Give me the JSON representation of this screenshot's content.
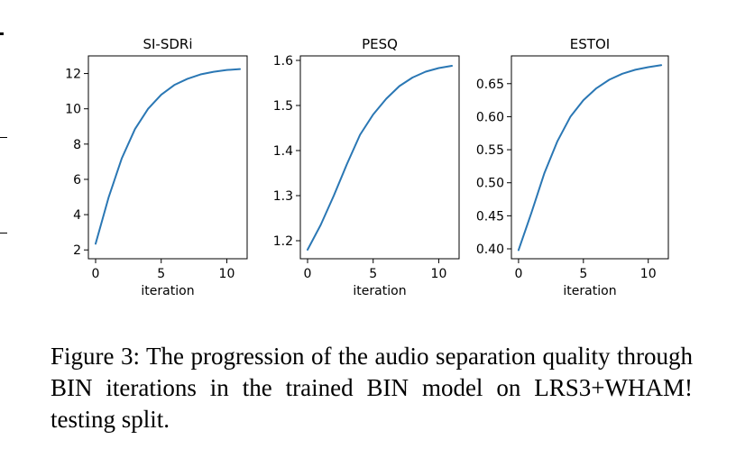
{
  "caption": "Figure 3: The progression of the audio separation quality through BIN iterations in the trained BIN model on LRS3+WHAM! testing split.",
  "colors": {
    "line": "#2a77b4",
    "axes": "#000000"
  },
  "chart_data": [
    {
      "type": "line",
      "title": "SI-SDRi",
      "xlabel": "iteration",
      "ylabel": "",
      "xlim": [
        -0.55,
        11.55
      ],
      "ylim": [
        1.5,
        13.0
      ],
      "xticks": [
        0,
        5,
        10
      ],
      "yticks": [
        2,
        4,
        6,
        8,
        10,
        12
      ],
      "x": [
        0,
        1,
        2,
        3,
        4,
        5,
        6,
        7,
        8,
        9,
        10,
        11
      ],
      "y": [
        2.35,
        5.0,
        7.2,
        8.85,
        10.0,
        10.8,
        11.35,
        11.7,
        11.95,
        12.1,
        12.2,
        12.25
      ],
      "grid": false
    },
    {
      "type": "line",
      "title": "PESQ",
      "xlabel": "iteration",
      "ylabel": "",
      "xlim": [
        -0.55,
        11.55
      ],
      "ylim": [
        1.16,
        1.61
      ],
      "xticks": [
        0,
        5,
        10
      ],
      "yticks": [
        1.2,
        1.3,
        1.4,
        1.5,
        1.6
      ],
      "ytick_decimals": 1,
      "x": [
        0,
        1,
        2,
        3,
        4,
        5,
        6,
        7,
        8,
        9,
        10,
        11
      ],
      "y": [
        1.18,
        1.235,
        1.3,
        1.37,
        1.435,
        1.48,
        1.515,
        1.543,
        1.562,
        1.575,
        1.583,
        1.588
      ],
      "grid": false
    },
    {
      "type": "line",
      "title": "ESTOI",
      "xlabel": "iteration",
      "ylabel": "",
      "xlim": [
        -0.55,
        11.55
      ],
      "ylim": [
        0.385,
        0.692
      ],
      "xticks": [
        0,
        5,
        10
      ],
      "yticks": [
        0.4,
        0.45,
        0.5,
        0.55,
        0.6,
        0.65
      ],
      "ytick_decimals": 2,
      "x": [
        0,
        1,
        2,
        3,
        4,
        5,
        6,
        7,
        8,
        9,
        10,
        11
      ],
      "y": [
        0.398,
        0.455,
        0.515,
        0.563,
        0.6,
        0.625,
        0.643,
        0.656,
        0.665,
        0.671,
        0.675,
        0.678
      ],
      "grid": false
    }
  ]
}
